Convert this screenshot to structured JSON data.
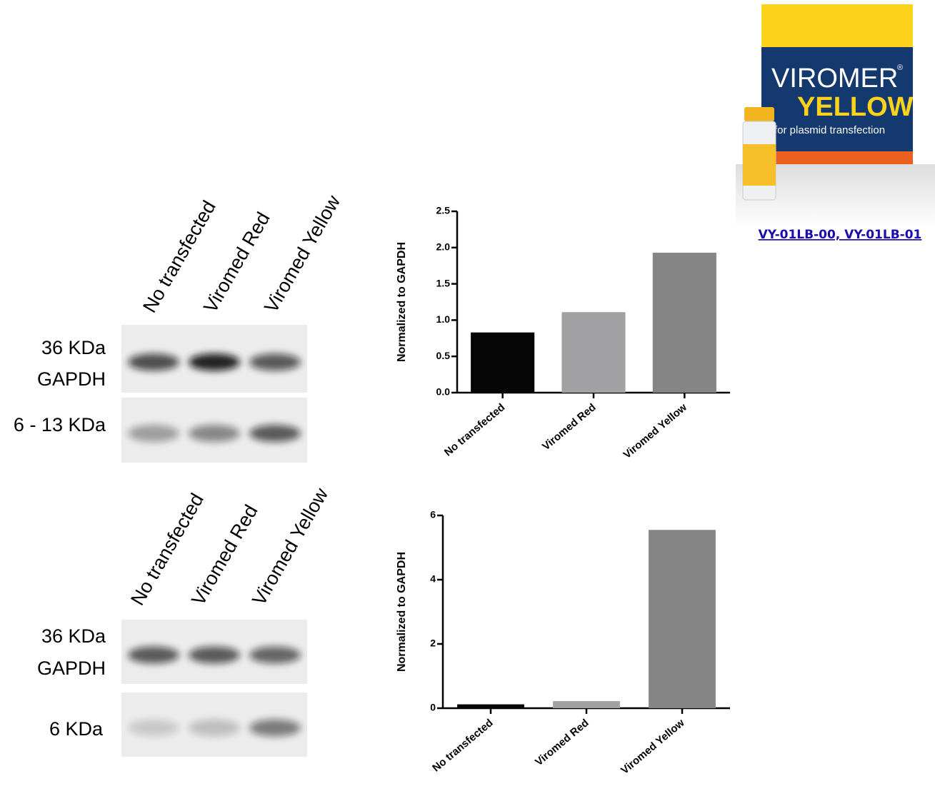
{
  "chart_data": [
    {
      "type": "bar",
      "ylabel": "Normalized to GAPDH",
      "categories": [
        "No transfected",
        "Viromed Red",
        "Viromed Yellow"
      ],
      "values": [
        0.83,
        1.11,
        1.93
      ],
      "colors": [
        "#050505",
        "#a2a2a4",
        "#858586"
      ],
      "ylim": [
        0,
        2.5
      ],
      "yticks": [
        {
          "value": 0,
          "label": "0.0"
        },
        0.5,
        {
          "value": 1,
          "label": "1.0"
        },
        1.5,
        {
          "value": 2,
          "label": "2.0"
        },
        2.5
      ]
    },
    {
      "type": "bar",
      "ylabel": "Normalized to GAPDH",
      "categories": [
        "No transfected",
        "Viromed Red",
        "Viromed Yellow"
      ],
      "values": [
        0.12,
        0.22,
        5.55
      ],
      "colors": [
        "#050505",
        "#a2a2a4",
        "#858586"
      ],
      "ylim": [
        0,
        6
      ],
      "yticks": [
        0,
        2,
        4,
        6
      ]
    }
  ],
  "blots": [
    {
      "lanes": [
        "No transfected",
        "Viromed Red",
        "Viromed Yellow"
      ],
      "labels": [
        "36 KDa",
        "GAPDH",
        "6 - 13 KDa"
      ]
    },
    {
      "lanes": [
        "No transfected",
        "Viromed Red",
        "Viromed Yellow"
      ],
      "labels": [
        "36 KDa",
        "GAPDH",
        "6 KDa"
      ]
    }
  ],
  "product": {
    "brand": "VIROMER",
    "mark": "®",
    "name": "YELLOW",
    "subtitle": "for plasmid transfection"
  },
  "link": "VY-01LB-00, VY-01LB-01"
}
